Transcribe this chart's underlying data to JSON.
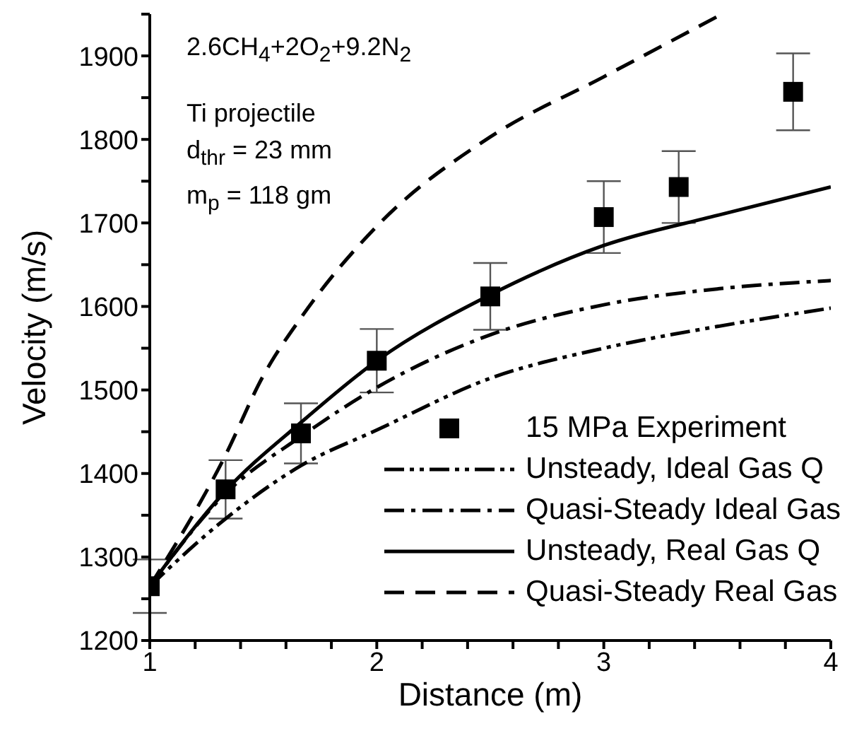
{
  "chart_data": {
    "type": "line",
    "xlabel": "Distance (m)",
    "ylabel": "Velocity (m/s)",
    "annotations": [
      "2.6CH$_{4}$+2O$_{2}$+9.2N$_{2}$",
      "Ti projectile",
      "d$_{thr}$ = 23 mm",
      "m$_{p}$ = 118 gm"
    ],
    "xlim": [
      1,
      4
    ],
    "xticks": [
      1,
      {
        "value": 1.2,
        "label": null
      },
      {
        "value": 1.4,
        "label": null
      },
      {
        "value": 1.6,
        "label": null
      },
      {
        "value": 1.8,
        "label": null
      },
      2,
      {
        "value": 2.2,
        "label": null
      },
      {
        "value": 2.4,
        "label": null
      },
      {
        "value": 2.6,
        "label": null
      },
      {
        "value": 2.8,
        "label": null
      },
      3,
      {
        "value": 3.2,
        "label": null
      },
      {
        "value": 3.4,
        "label": null
      },
      {
        "value": 3.6,
        "label": null
      },
      {
        "value": 3.8,
        "label": null
      },
      4
    ],
    "ylim": [
      1200,
      1950
    ],
    "yticks": [
      1200,
      {
        "value": 1250,
        "label": null
      },
      1300,
      {
        "value": 1350,
        "label": null
      },
      1400,
      {
        "value": 1450,
        "label": null
      },
      1500,
      {
        "value": 1550,
        "label": null
      },
      1600,
      {
        "value": 1650,
        "label": null
      },
      1700,
      {
        "value": 1750,
        "label": null
      },
      1800,
      {
        "value": 1850,
        "label": null
      },
      1900,
      {
        "value": 1950,
        "label": null
      }
    ],
    "grid": false,
    "legend": "bottom right",
    "series": [
      {
        "name": "15 MPa Experiment",
        "type": "scatter",
        "marker": "square",
        "color": "#000000",
        "x": [
          1,
          1.334,
          1.666,
          2.0,
          2.5,
          3.0,
          3.33,
          3.834
        ],
        "values": [
          1265,
          1381,
          1448,
          1535,
          1612,
          1707,
          1743,
          1857
        ],
        "errors": [
          32,
          35,
          36,
          38,
          40,
          43,
          43,
          46
        ]
      },
      {
        "name": "Unsteady, Ideal Gas Q",
        "marker": "none",
        "line_style": "dashdotdot",
        "color": "#000000",
        "x": [
          1,
          1.33,
          1.67,
          2,
          2.5,
          3,
          3.5,
          4
        ],
        "values": [
          1265,
          1345,
          1410,
          1452,
          1514,
          1550,
          1576,
          1598
        ]
      },
      {
        "name": "Quasi-Steady Ideal Gas",
        "marker": "none",
        "line_style": "dashdot",
        "color": "#000000",
        "x": [
          1,
          1.33,
          1.67,
          2,
          2.5,
          3,
          3.5,
          4
        ],
        "values": [
          1265,
          1375,
          1445,
          1503,
          1566,
          1602,
          1621,
          1631
        ]
      },
      {
        "name": "Unsteady, Real Gas Q",
        "marker": "none",
        "line_style": "solid",
        "color": "#000000",
        "x": [
          1,
          1.33,
          1.67,
          2,
          2.5,
          3,
          3.5,
          4
        ],
        "values": [
          1265,
          1378,
          1462,
          1535,
          1614,
          1673,
          1709,
          1743
        ]
      },
      {
        "name": "Quasi-Steady Real Gas",
        "marker": "none",
        "line_style": "dashed",
        "color": "#000000",
        "x": [
          1,
          1.33,
          1.5,
          1.67,
          2,
          2.5,
          3,
          3.52
        ],
        "values": [
          1265,
          1420,
          1517,
          1588,
          1696,
          1803,
          1875,
          1950
        ]
      }
    ]
  }
}
